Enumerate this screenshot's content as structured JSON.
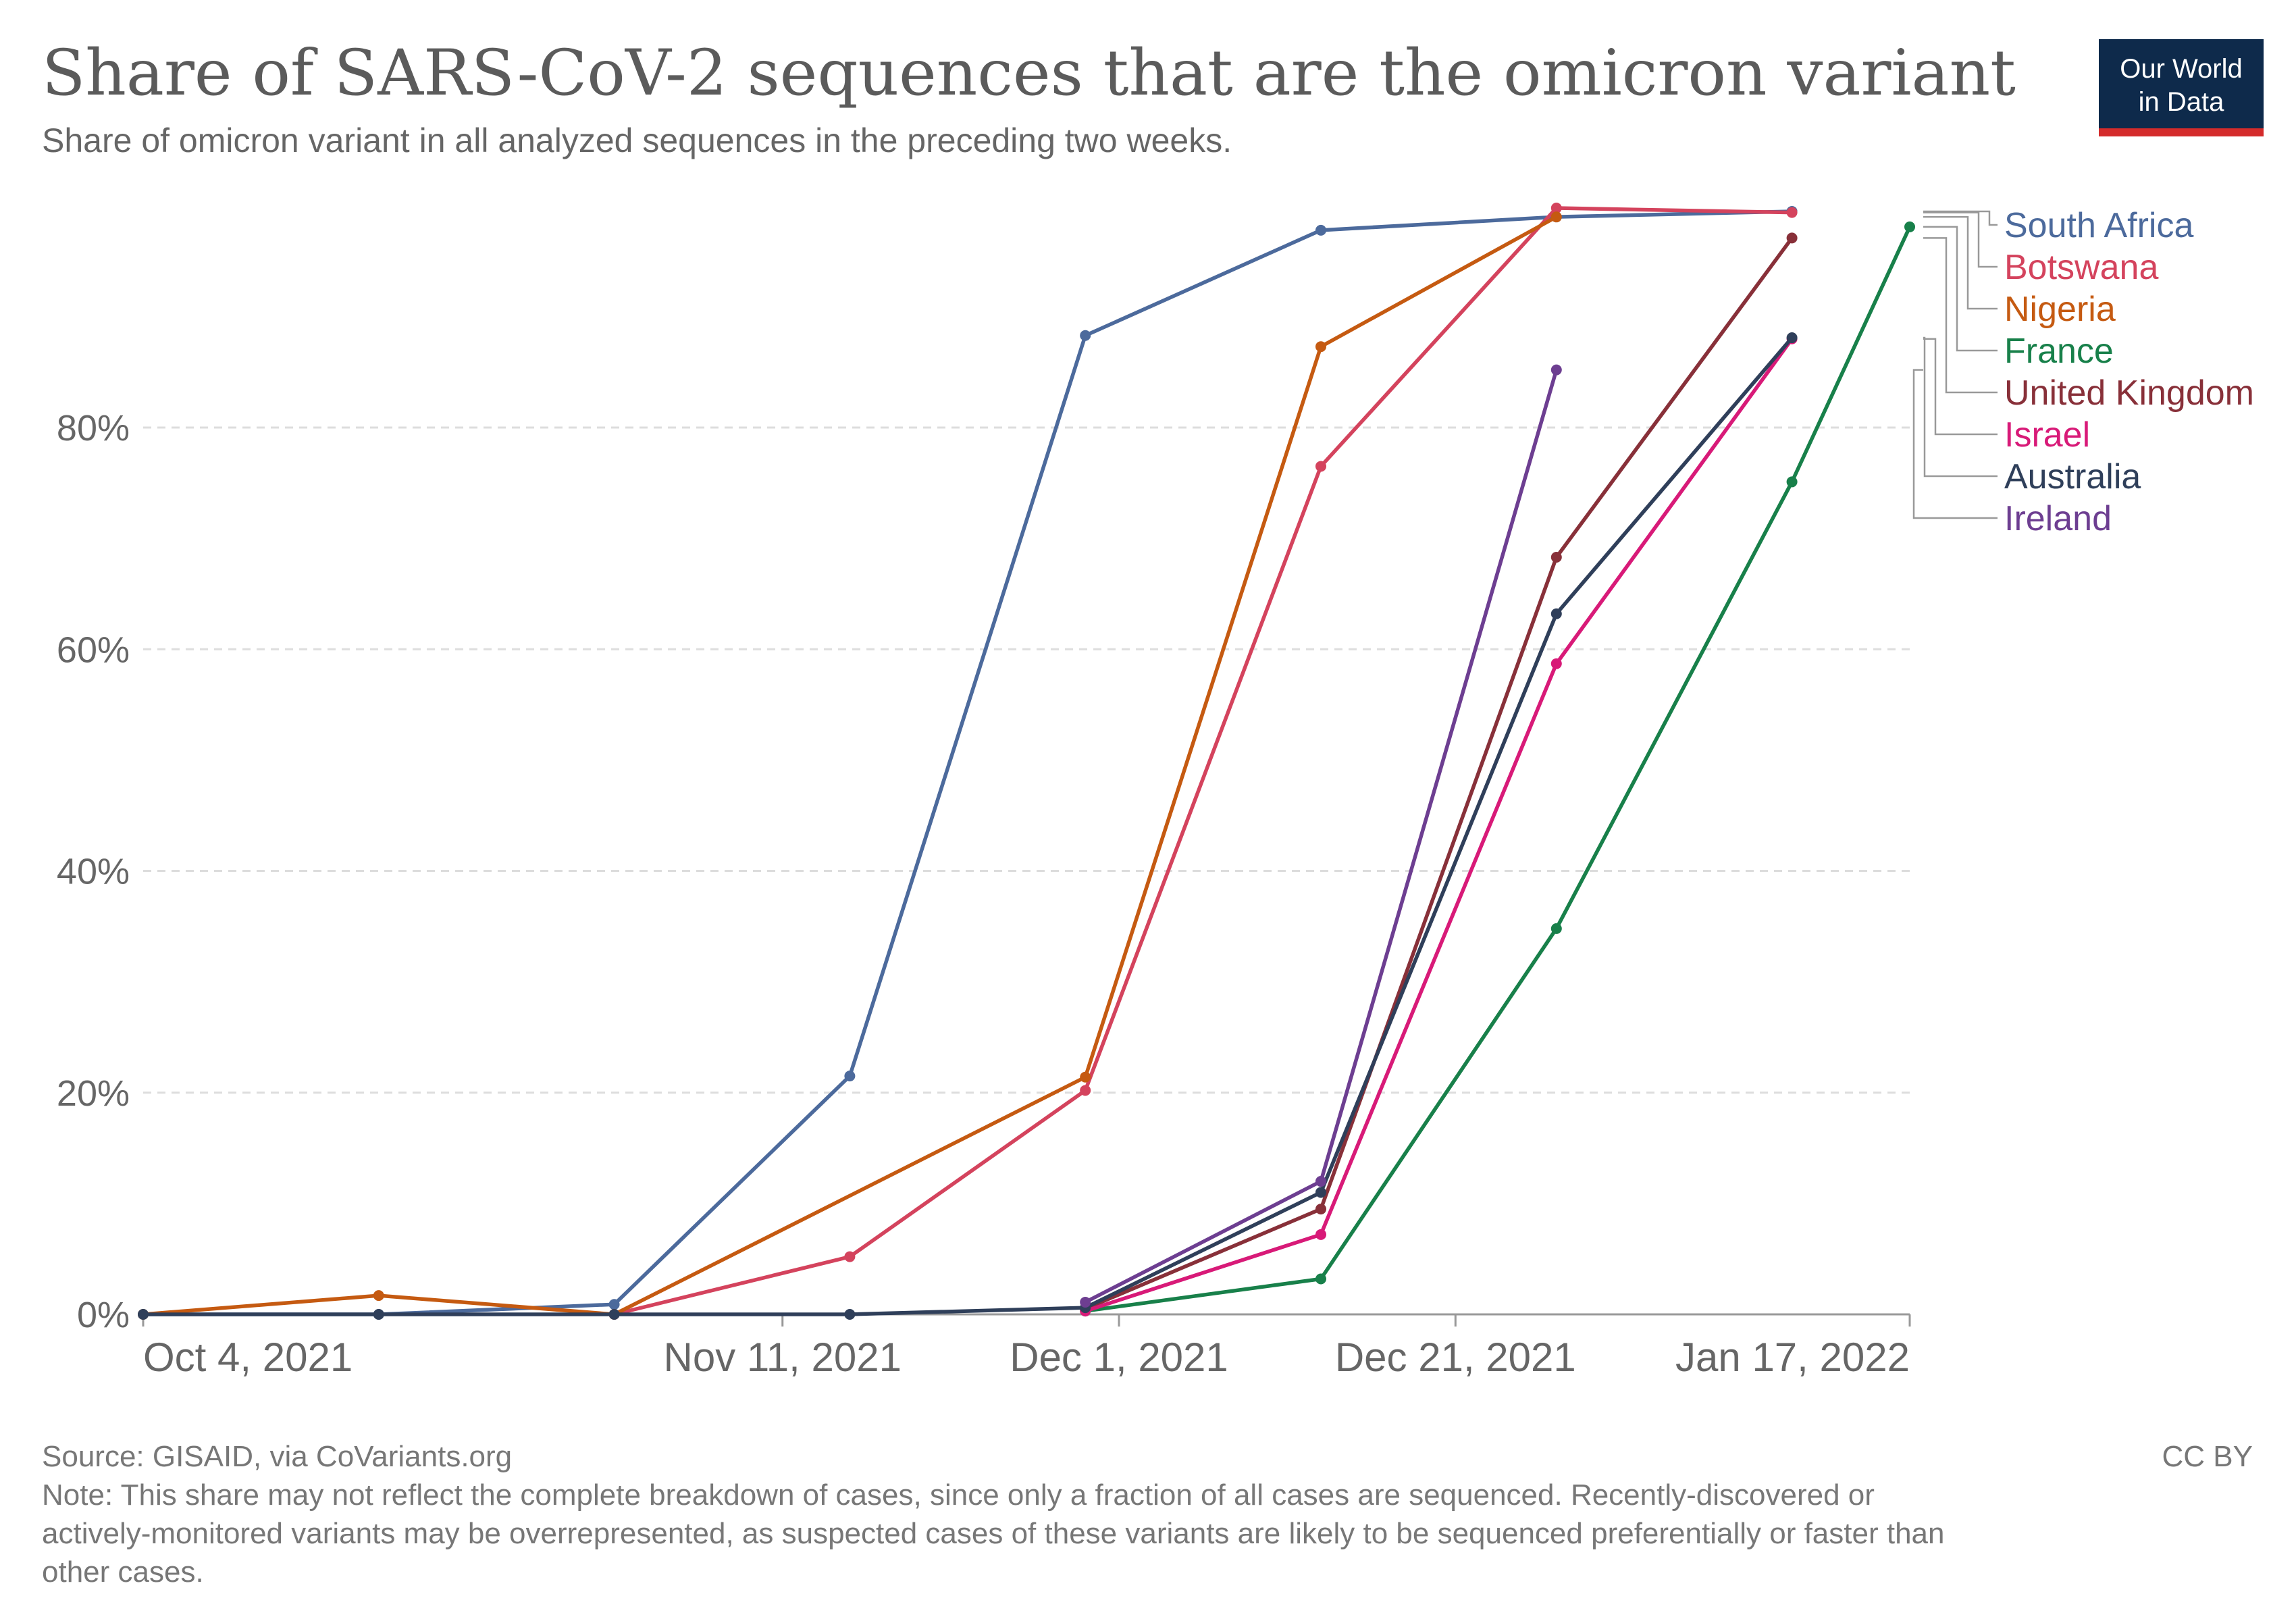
{
  "header": {
    "title": "Share of SARS-CoV-2 sequences that are the omicron variant",
    "subtitle": "Share of omicron variant in all analyzed sequences in the preceding two weeks."
  },
  "logo": {
    "line1": "Our World",
    "line2": "in Data",
    "bg_color": "#0e2a4b",
    "bar_color": "#d42b2b"
  },
  "footer": {
    "source": "Source: GISAID, via CoVariants.org",
    "license": "CC BY",
    "note_lines": [
      "Note: This share may not reflect the complete breakdown of cases, since only a fraction of all cases are sequenced. Recently-discovered or",
      "actively-monitored variants may be overrepresented, as suspected cases of these variants are likely to be sequenced preferentially or faster than",
      "other cases."
    ]
  },
  "chart_data": {
    "type": "line",
    "title": "Share of SARS-CoV-2 sequences that are the omicron variant",
    "xlabel": "",
    "ylabel": "",
    "x_range_days": [
      0,
      105
    ],
    "ylim": [
      0,
      100
    ],
    "y_ticks": [
      0,
      20,
      40,
      60,
      80
    ],
    "y_tick_labels": [
      "0%",
      "20%",
      "40%",
      "60%",
      "80%"
    ],
    "x_ticks": [
      {
        "day": 0,
        "label": "Oct 4, 2021"
      },
      {
        "day": 38,
        "label": "Nov 11, 2021"
      },
      {
        "day": 58,
        "label": "Dec 1, 2021"
      },
      {
        "day": 78,
        "label": "Dec 21, 2021"
      },
      {
        "day": 105,
        "label": "Jan 17, 2022"
      }
    ],
    "x_unit": "days since Oct 4, 2021",
    "grid": true,
    "series": [
      {
        "name": "South Africa",
        "color": "#4c6a9c",
        "points": [
          [
            0,
            0
          ],
          [
            14,
            0
          ],
          [
            28,
            0.9
          ],
          [
            42,
            21.5
          ],
          [
            56,
            88.3
          ],
          [
            70,
            97.8
          ],
          [
            84,
            99
          ],
          [
            98,
            99.5
          ]
        ]
      },
      {
        "name": "Botswana",
        "color": "#d4435d",
        "points": [
          [
            28,
            0
          ],
          [
            42,
            5.2
          ],
          [
            56,
            20.2
          ],
          [
            70,
            76.5
          ],
          [
            84,
            99.8
          ],
          [
            98,
            99.4
          ]
        ]
      },
      {
        "name": "Nigeria",
        "color": "#c55a11",
        "points": [
          [
            0,
            0
          ],
          [
            14,
            1.7
          ],
          [
            28,
            0
          ],
          [
            56,
            21.4
          ],
          [
            70,
            87.3
          ],
          [
            84,
            99
          ]
        ]
      },
      {
        "name": "France",
        "color": "#18804a",
        "points": [
          [
            56,
            0.3
          ],
          [
            70,
            3.2
          ],
          [
            84,
            34.8
          ],
          [
            98,
            75.1
          ],
          [
            105,
            98.1
          ]
        ]
      },
      {
        "name": "United Kingdom",
        "color": "#883039",
        "points": [
          [
            56,
            0.5
          ],
          [
            70,
            9.5
          ],
          [
            84,
            68.3
          ],
          [
            98,
            97.1
          ]
        ]
      },
      {
        "name": "Israel",
        "color": "#d81a78",
        "points": [
          [
            56,
            0.3
          ],
          [
            70,
            7.2
          ],
          [
            84,
            58.7
          ],
          [
            98,
            88
          ]
        ]
      },
      {
        "name": "Australia",
        "color": "#2f3f5a",
        "points": [
          [
            0,
            0
          ],
          [
            14,
            0
          ],
          [
            28,
            0
          ],
          [
            42,
            0
          ],
          [
            56,
            0.6
          ],
          [
            70,
            11
          ],
          [
            84,
            63.2
          ],
          [
            98,
            88.1
          ]
        ]
      },
      {
        "name": "Ireland",
        "color": "#6d3e91",
        "points": [
          [
            56,
            1.1
          ],
          [
            70,
            12
          ],
          [
            84,
            85.2
          ]
        ]
      }
    ]
  }
}
